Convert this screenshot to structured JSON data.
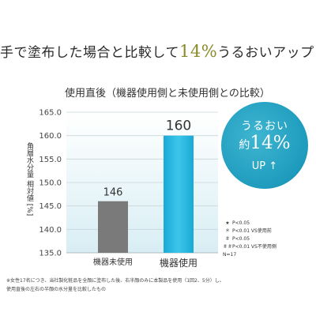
{
  "headline": {
    "prefix": "手で塗布した場合と比較して",
    "highlight": "14%",
    "suffix": "うるおいアップ！"
  },
  "colors": {
    "accent": "#8a8a2a",
    "teal": "#1e9bbd",
    "bar_gray": "#7a7a7a",
    "bar_blue": "#29b8e0"
  },
  "chart_data": {
    "type": "bar",
    "title": "使用直後（機器使用側と未使用側との比較）",
    "ylabel": "角層水分量 相対値 [%]",
    "xlabel": "",
    "categories": [
      "機器未使用",
      "機器使用"
    ],
    "values": [
      146,
      160
    ],
    "data_labels": [
      "146",
      "160"
    ],
    "ylim": [
      135,
      165
    ],
    "yticks": [
      "135.0",
      "140.0",
      "145.0",
      "150.0",
      "155.0",
      "160.0",
      "165.0"
    ],
    "grid": true
  },
  "badge": {
    "line1": "うるおい",
    "line2_prefix": "約",
    "line2_value": "14",
    "line2_unit": "%",
    "line3": "UP ↑"
  },
  "legend_notes": [
    {
      "symbol": "★",
      "text": "P<0.05"
    },
    {
      "symbol": "＊",
      "text": "P<0.01 VS使用前"
    },
    {
      "symbol": "＃",
      "text": "P<0.05"
    },
    {
      "symbol": "＃＃",
      "text": "P<0.01 VS不使用側"
    },
    {
      "symbol": "",
      "text": "N=17"
    }
  ],
  "footnote": {
    "line1": "※女性17名につき、当社製化粧品を全顔に塗布した後、右半顔のみに本製品を使用（1回2、5分）し、",
    "line2": "使用直後の左右の半顔の水分量を比較したもの"
  }
}
